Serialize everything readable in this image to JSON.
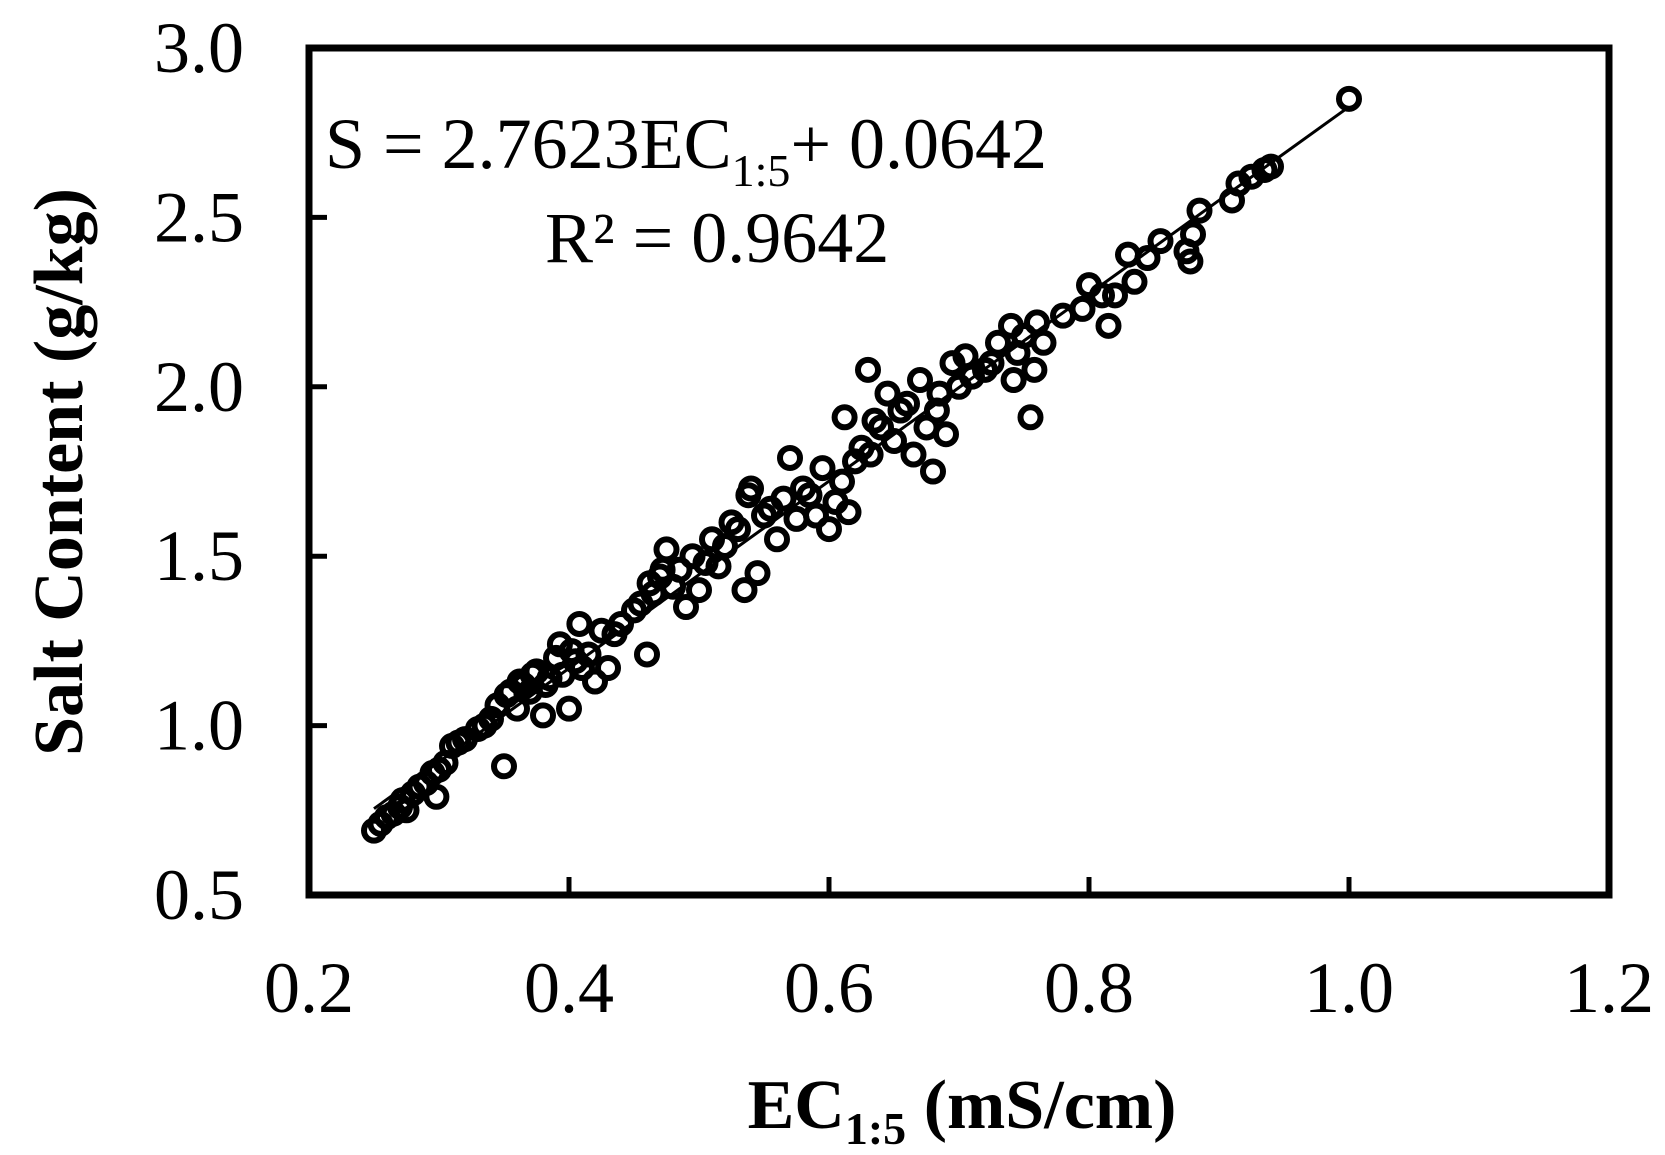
{
  "chart_data": {
    "type": "scatter",
    "title": "",
    "xlabel": {
      "main": "EC",
      "sub": "1:5",
      "unit": " (mS/cm)"
    },
    "ylabel": "Salt Content (g/kg)",
    "xlim": [
      0.2,
      1.2
    ],
    "ylim": [
      0.5,
      3.0
    ],
    "x_ticks": [
      "0.2",
      "0.4",
      "0.6",
      "0.8",
      "1.0",
      "1.2"
    ],
    "y_ticks": [
      "0.5",
      "1.0",
      "1.5",
      "2.0",
      "2.5",
      "3.0"
    ],
    "grid": false,
    "legend": "none",
    "annotations": {
      "equation": {
        "pre": "S = 2.7623EC",
        "sub": "1:5",
        "post": "+ 0.0642"
      },
      "r2": "R² = 0.9642"
    },
    "trendline": {
      "slope": 2.7623,
      "intercept": 0.0642,
      "x_range": [
        0.25,
        1.0
      ]
    },
    "colors": {
      "marker": "#000000",
      "line": "#000000",
      "axes": "#000000"
    },
    "series": [
      {
        "marker": "open-circle",
        "x": [
          0.25,
          0.255,
          0.26,
          0.265,
          0.27,
          0.272,
          0.275,
          0.28,
          0.285,
          0.29,
          0.295,
          0.298,
          0.3,
          0.305,
          0.31,
          0.315,
          0.32,
          0.33,
          0.335,
          0.34,
          0.345,
          0.35,
          0.352,
          0.355,
          0.36,
          0.362,
          0.365,
          0.37,
          0.372,
          0.375,
          0.38,
          0.382,
          0.385,
          0.39,
          0.393,
          0.395,
          0.4,
          0.402,
          0.405,
          0.408,
          0.41,
          0.415,
          0.42,
          0.425,
          0.43,
          0.435,
          0.44,
          0.45,
          0.455,
          0.46,
          0.462,
          0.465,
          0.47,
          0.472,
          0.475,
          0.48,
          0.485,
          0.49,
          0.495,
          0.5,
          0.505,
          0.51,
          0.515,
          0.52,
          0.525,
          0.53,
          0.535,
          0.538,
          0.54,
          0.545,
          0.55,
          0.555,
          0.56,
          0.565,
          0.57,
          0.575,
          0.58,
          0.585,
          0.59,
          0.595,
          0.6,
          0.605,
          0.61,
          0.612,
          0.615,
          0.62,
          0.625,
          0.63,
          0.632,
          0.635,
          0.64,
          0.645,
          0.65,
          0.655,
          0.66,
          0.665,
          0.67,
          0.675,
          0.68,
          0.683,
          0.685,
          0.69,
          0.695,
          0.7,
          0.705,
          0.71,
          0.72,
          0.725,
          0.73,
          0.74,
          0.742,
          0.745,
          0.75,
          0.755,
          0.758,
          0.76,
          0.765,
          0.78,
          0.795,
          0.8,
          0.81,
          0.815,
          0.82,
          0.83,
          0.835,
          0.845,
          0.855,
          0.875,
          0.878,
          0.88,
          0.885,
          0.91,
          0.915,
          0.925,
          0.935,
          0.94,
          1.0
        ],
        "y": [
          0.69,
          0.71,
          0.73,
          0.74,
          0.76,
          0.78,
          0.75,
          0.8,
          0.82,
          0.83,
          0.86,
          0.79,
          0.87,
          0.89,
          0.94,
          0.95,
          0.96,
          0.99,
          1.0,
          1.02,
          1.06,
          0.88,
          1.09,
          1.1,
          1.05,
          1.13,
          1.12,
          1.1,
          1.15,
          1.16,
          1.03,
          1.12,
          1.14,
          1.2,
          1.24,
          1.15,
          1.05,
          1.22,
          1.19,
          1.3,
          1.17,
          1.21,
          1.13,
          1.28,
          1.17,
          1.27,
          1.3,
          1.34,
          1.36,
          1.21,
          1.42,
          1.39,
          1.44,
          1.46,
          1.52,
          1.41,
          1.46,
          1.35,
          1.5,
          1.4,
          1.48,
          1.55,
          1.47,
          1.53,
          1.6,
          1.58,
          1.4,
          1.68,
          1.7,
          1.45,
          1.62,
          1.64,
          1.55,
          1.67,
          1.79,
          1.61,
          1.7,
          1.68,
          1.62,
          1.76,
          1.58,
          1.66,
          1.72,
          1.91,
          1.63,
          1.78,
          1.82,
          2.05,
          1.8,
          1.9,
          1.88,
          1.98,
          1.84,
          1.93,
          1.95,
          1.8,
          2.02,
          1.88,
          1.75,
          1.93,
          1.98,
          1.86,
          2.07,
          2.0,
          2.09,
          2.03,
          2.05,
          2.07,
          2.13,
          2.18,
          2.02,
          2.1,
          2.15,
          1.91,
          2.05,
          2.19,
          2.13,
          2.21,
          2.23,
          2.3,
          2.27,
          2.18,
          2.27,
          2.39,
          2.31,
          2.38,
          2.43,
          2.4,
          2.37,
          2.45,
          2.52,
          2.55,
          2.6,
          2.62,
          2.64,
          2.65,
          2.85
        ]
      }
    ]
  }
}
